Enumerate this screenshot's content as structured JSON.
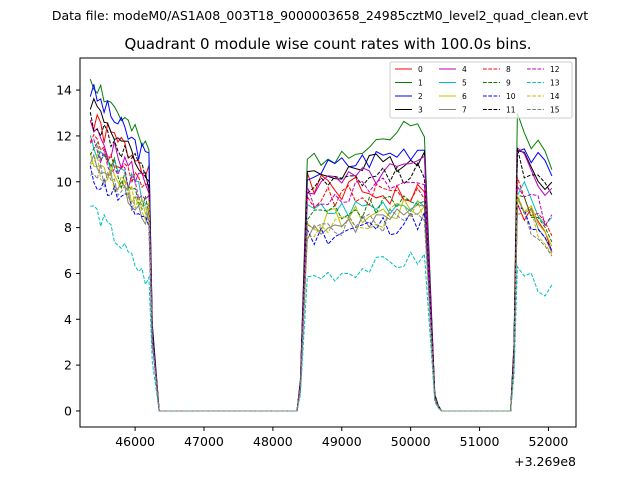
{
  "chart_data": {
    "type": "line",
    "suptitle": "Data file: modeM0/AS1A08_003T18_9000003658_24985cztM0_level2_quad_clean.evt",
    "title": "Quadrant 0 module wise count rates with 100.0s bins.",
    "xlabel": "",
    "ylabel": "",
    "x_offset_label": "+3.269e8",
    "xlim": [
      45200,
      52400
    ],
    "ylim": [
      -0.7,
      15.4
    ],
    "x_ticks": [
      46000,
      47000,
      48000,
      49000,
      50000,
      51000,
      52000
    ],
    "y_ticks": [
      0,
      2,
      4,
      6,
      8,
      10,
      12,
      14
    ],
    "legend_position": "top-right",
    "series": [
      {
        "name": "0",
        "color": "#ff0000",
        "dash": "solid",
        "seed": 1,
        "levels": [
          12.2,
          9.4,
          9.3,
          8.4
        ],
        "start": [
          12.6,
          9.8,
          9.6,
          9.2
        ],
        "wobble": 0.6
      },
      {
        "name": "1",
        "color": "#008000",
        "dash": "solid",
        "seed": 2,
        "levels": [
          12.7,
          11.3,
          12.5,
          11.8
        ],
        "start": [
          14.6,
          10.9,
          12.1,
          12.8
        ],
        "wobble": 0.5
      },
      {
        "name": "2",
        "color": "#0000ff",
        "dash": "solid",
        "seed": 3,
        "levels": [
          12.4,
          10.8,
          11.6,
          11.4
        ],
        "start": [
          14.0,
          10.4,
          11.1,
          11.8
        ],
        "wobble": 0.5
      },
      {
        "name": "3",
        "color": "#000000",
        "dash": "solid",
        "seed": 4,
        "levels": [
          11.6,
          10.6,
          11.2,
          11.0
        ],
        "start": [
          13.6,
          10.2,
          10.8,
          11.5
        ],
        "wobble": 0.5
      },
      {
        "name": "4",
        "color": "#bf00bf",
        "dash": "solid",
        "seed": 5,
        "levels": [
          11.3,
          10.0,
          10.7,
          10.6
        ],
        "start": [
          12.3,
          9.7,
          10.4,
          11.3
        ],
        "wobble": 0.5
      },
      {
        "name": "5",
        "color": "#00bfbf",
        "dash": "solid",
        "seed": 6,
        "levels": [
          10.6,
          9.0,
          9.2,
          9.2
        ],
        "start": [
          11.8,
          8.6,
          9.0,
          9.9
        ],
        "wobble": 0.5
      },
      {
        "name": "6",
        "color": "#bfbf00",
        "dash": "solid",
        "seed": 7,
        "levels": [
          10.3,
          8.4,
          8.9,
          8.8
        ],
        "start": [
          11.2,
          8.2,
          8.6,
          9.4
        ],
        "wobble": 0.5
      },
      {
        "name": "7",
        "color": "#808080",
        "dash": "solid",
        "seed": 8,
        "levels": [
          10.0,
          8.1,
          8.6,
          8.4
        ],
        "start": [
          10.9,
          7.9,
          8.3,
          9.2
        ],
        "wobble": 0.5
      },
      {
        "name": "8",
        "color": "#ff0000",
        "dash": "dashed",
        "seed": 9,
        "levels": [
          10.9,
          9.4,
          9.6,
          9.0
        ],
        "start": [
          12.0,
          9.2,
          9.4,
          9.7
        ],
        "wobble": 0.5
      },
      {
        "name": "9",
        "color": "#008000",
        "dash": "dashed",
        "seed": 10,
        "levels": [
          10.5,
          8.8,
          9.2,
          8.6
        ],
        "start": [
          11.6,
          8.6,
          9.0,
          9.6
        ],
        "wobble": 0.5
      },
      {
        "name": "10",
        "color": "#0000ff",
        "dash": "dashed",
        "seed": 11,
        "levels": [
          9.8,
          7.8,
          8.4,
          8.1
        ],
        "start": [
          10.3,
          7.6,
          8.2,
          8.8
        ],
        "wobble": 0.5
      },
      {
        "name": "11",
        "color": "#000000",
        "dash": "dashed",
        "seed": 12,
        "levels": [
          11.6,
          9.8,
          10.6,
          10.4
        ],
        "start": [
          12.8,
          9.6,
          10.3,
          11.0
        ],
        "wobble": 0.5
      },
      {
        "name": "12",
        "color": "#bf00bf",
        "dash": "dashed",
        "seed": 13,
        "levels": [
          10.8,
          9.5,
          10.0,
          9.4
        ],
        "start": [
          11.6,
          9.3,
          9.8,
          10.0
        ],
        "wobble": 0.5
      },
      {
        "name": "13",
        "color": "#00bfbf",
        "dash": "dashed",
        "seed": 14,
        "levels": [
          7.1,
          6.1,
          6.7,
          6.3
        ],
        "start": [
          9.0,
          5.8,
          6.5,
          6.2
        ],
        "wobble": 0.4
      },
      {
        "name": "14",
        "color": "#bfbf00",
        "dash": "dashed",
        "seed": 15,
        "levels": [
          10.2,
          8.3,
          8.8,
          8.4
        ],
        "start": [
          11.0,
          8.0,
          8.5,
          9.0
        ],
        "wobble": 0.5
      },
      {
        "name": "15",
        "color": "#808080",
        "dash": "dashed",
        "seed": 16,
        "levels": [
          10.0,
          8.1,
          8.5,
          8.2
        ],
        "start": [
          10.7,
          7.9,
          8.3,
          8.8
        ],
        "wobble": 0.5
      }
    ],
    "segments": [
      {
        "start": 45350,
        "end": 46200,
        "step": 50
      },
      {
        "start": 48500,
        "end": 50250,
        "step": 100
      },
      {
        "start": 50350,
        "end": 50350,
        "step": 100
      },
      {
        "start": 51550,
        "end": 52050,
        "step": 100
      }
    ],
    "zero_ranges": [
      [
        46350,
        48350
      ],
      [
        50450,
        51450
      ]
    ],
    "transitions": [
      {
        "x": 46250,
        "fraction": 0.3
      },
      {
        "x": 48400,
        "fraction": 0.12
      },
      {
        "x": 50400,
        "fraction": 0.02
      },
      {
        "x": 51500,
        "fraction": 0.25
      }
    ]
  }
}
